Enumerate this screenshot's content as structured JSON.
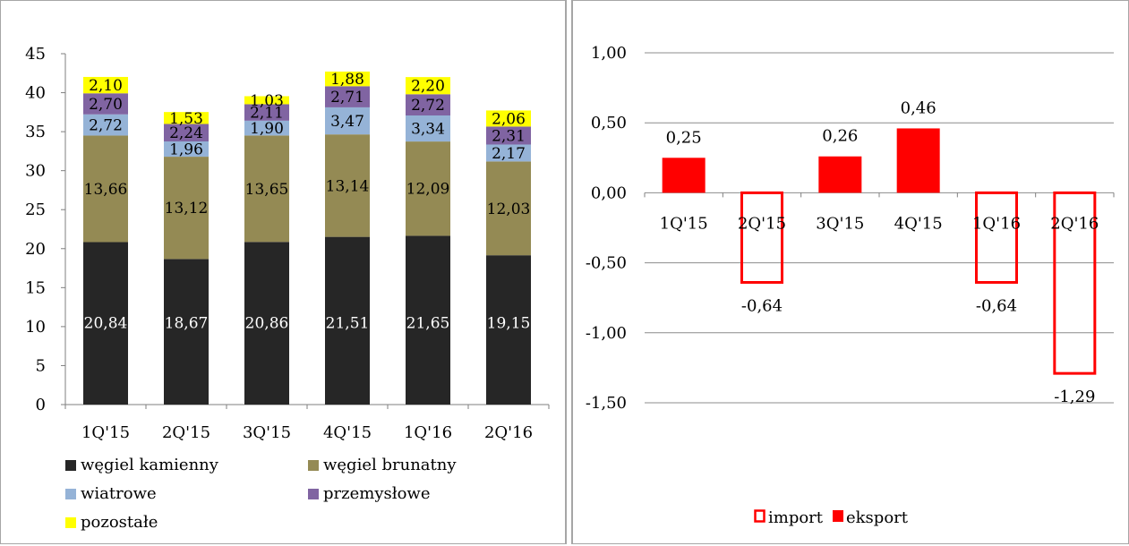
{
  "chart_data": [
    {
      "type": "bar",
      "stacked": true,
      "categories": [
        "1Q'15",
        "2Q'15",
        "3Q'15",
        "4Q'15",
        "1Q'16",
        "2Q'16"
      ],
      "ylim": [
        0,
        45
      ],
      "yticks": [
        "0",
        "5",
        "10",
        "15",
        "20",
        "25",
        "30",
        "35",
        "40",
        "45"
      ],
      "grid": false,
      "legend_position": "bottom",
      "series": [
        {
          "name": "węgiel kamienny",
          "color": "#262626",
          "label_color": "#ffffff",
          "values": [
            20.84,
            18.67,
            20.86,
            21.51,
            21.65,
            19.15
          ],
          "labels": [
            "20,84",
            "18,67",
            "20,86",
            "21,51",
            "21,65",
            "19,15"
          ]
        },
        {
          "name": "węgiel brunatny",
          "color": "#948a54",
          "label_color": "#000000",
          "values": [
            13.66,
            13.12,
            13.65,
            13.14,
            12.09,
            12.03
          ],
          "labels": [
            "13,66",
            "13,12",
            "13,65",
            "13,14",
            "12,09",
            "12,03"
          ]
        },
        {
          "name": "wiatrowe",
          "color": "#95b3d7",
          "label_color": "#000000",
          "values": [
            2.72,
            1.96,
            1.9,
            3.47,
            3.34,
            2.17
          ],
          "labels": [
            "2,72",
            "1,96",
            "1,90",
            "3,47",
            "3,34",
            "2,17"
          ]
        },
        {
          "name": "przemysłowe",
          "color": "#8064a2",
          "label_color": "#000000",
          "values": [
            2.7,
            2.24,
            2.11,
            2.71,
            2.72,
            2.31
          ],
          "labels": [
            "2,70",
            "2,24",
            "2,11",
            "2,71",
            "2,72",
            "2,31"
          ]
        },
        {
          "name": "pozostałe",
          "color": "#ffff00",
          "label_color": "#000000",
          "values": [
            2.1,
            1.53,
            1.03,
            1.88,
            2.2,
            2.06
          ],
          "labels": [
            "2,10",
            "1,53",
            "1,03",
            "1,88",
            "2,20",
            "2,06"
          ]
        }
      ]
    },
    {
      "type": "bar",
      "categories": [
        "1Q'15",
        "2Q'15",
        "3Q'15",
        "4Q'15",
        "1Q'16",
        "2Q'16"
      ],
      "ylim": [
        -1.5,
        1.0
      ],
      "yticks": [
        "-1,50",
        "-1,00",
        "-0,50",
        "0,00",
        "0,50",
        "1,00"
      ],
      "grid": true,
      "legend_position": "bottom",
      "values": [
        0.25,
        -0.64,
        0.26,
        0.46,
        -0.64,
        -1.29
      ],
      "labels": [
        "0,25",
        "-0,64",
        "0,26",
        "0,46",
        "-0,64",
        "-1,29"
      ],
      "bar_type": [
        "eksport",
        "import",
        "eksport",
        "eksport",
        "import",
        "import"
      ],
      "legend": [
        {
          "name": "import",
          "style": "outline",
          "color": "#ff0000"
        },
        {
          "name": "eksport",
          "style": "filled",
          "color": "#ff0000"
        }
      ]
    }
  ]
}
